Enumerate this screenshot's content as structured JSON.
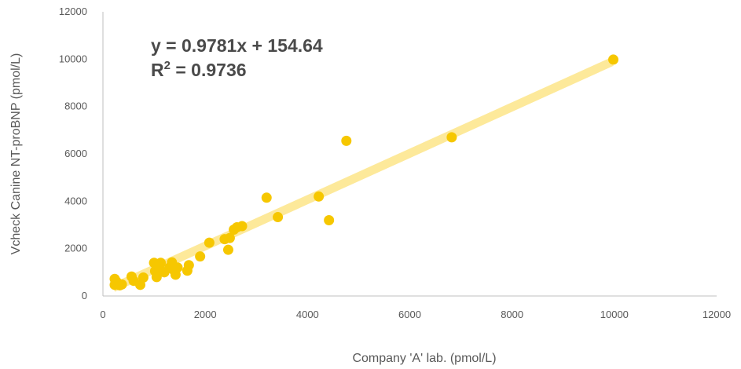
{
  "chart_data": {
    "type": "scatter",
    "title": "",
    "xlabel": "Company 'A' lab. (pmol/L)",
    "ylabel": "Vcheck Canine NT-proBNP (pmol/L)",
    "xlim": [
      0,
      12000
    ],
    "ylim": [
      0,
      12000
    ],
    "x_ticks": [
      "0",
      "2000",
      "4000",
      "6000",
      "8000",
      "10000",
      "12000"
    ],
    "y_ticks": [
      "0",
      "2000",
      "4000",
      "6000",
      "8000",
      "10000",
      "12000"
    ],
    "grid": false,
    "legend": "none",
    "colors": {
      "points": "#f6c700",
      "trendline": "#fde99a",
      "text": "#595959"
    },
    "annotations": {
      "equation": "y = 0.9781x + 154.64",
      "r2_base": "R",
      "r2_exp": "2",
      "r2_value": " = 0.9736"
    },
    "trendline": {
      "slope": 0.9781,
      "intercept": 154.64,
      "x_range": [
        200,
        9950
      ]
    },
    "points": [
      {
        "x": 230,
        "y": 720
      },
      {
        "x": 260,
        "y": 620
      },
      {
        "x": 230,
        "y": 470
      },
      {
        "x": 280,
        "y": 500
      },
      {
        "x": 330,
        "y": 450
      },
      {
        "x": 370,
        "y": 490
      },
      {
        "x": 560,
        "y": 820
      },
      {
        "x": 600,
        "y": 640
      },
      {
        "x": 730,
        "y": 470
      },
      {
        "x": 790,
        "y": 780
      },
      {
        "x": 1000,
        "y": 1400
      },
      {
        "x": 1020,
        "y": 1050
      },
      {
        "x": 1050,
        "y": 800
      },
      {
        "x": 1100,
        "y": 1200
      },
      {
        "x": 1130,
        "y": 1400
      },
      {
        "x": 1200,
        "y": 1000
      },
      {
        "x": 1300,
        "y": 1200
      },
      {
        "x": 1350,
        "y": 1420
      },
      {
        "x": 1380,
        "y": 1100
      },
      {
        "x": 1420,
        "y": 900
      },
      {
        "x": 1460,
        "y": 1200
      },
      {
        "x": 1650,
        "y": 1070
      },
      {
        "x": 1680,
        "y": 1300
      },
      {
        "x": 1900,
        "y": 1670
      },
      {
        "x": 2080,
        "y": 2250
      },
      {
        "x": 2380,
        "y": 2400
      },
      {
        "x": 2450,
        "y": 1950
      },
      {
        "x": 2480,
        "y": 2450
      },
      {
        "x": 2560,
        "y": 2800
      },
      {
        "x": 2620,
        "y": 2900
      },
      {
        "x": 2720,
        "y": 2950
      },
      {
        "x": 3200,
        "y": 4150
      },
      {
        "x": 3420,
        "y": 3330
      },
      {
        "x": 4220,
        "y": 4200
      },
      {
        "x": 4420,
        "y": 3200
      },
      {
        "x": 4760,
        "y": 6550
      },
      {
        "x": 6820,
        "y": 6700
      },
      {
        "x": 9980,
        "y": 9980
      }
    ]
  }
}
